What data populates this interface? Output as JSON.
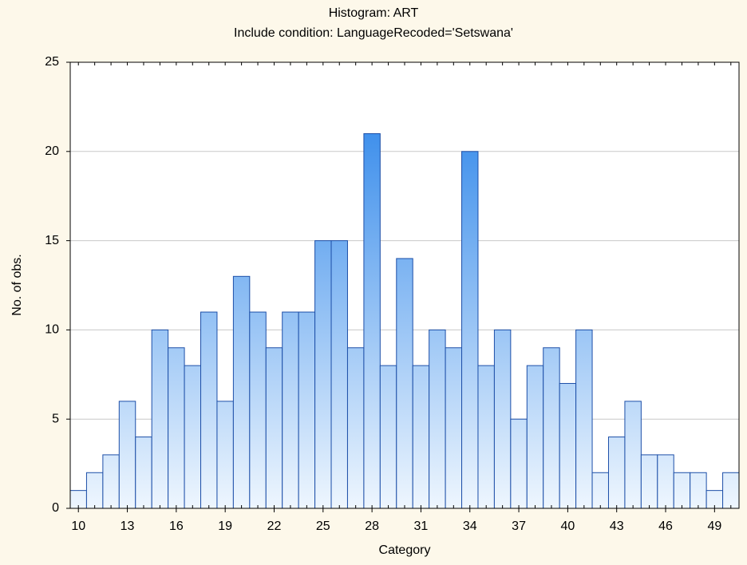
{
  "chart_data": {
    "type": "bar",
    "title": "Histogram: ART",
    "subtitle": "Include condition: LanguageRecoded='Setswana'",
    "xlabel": "Category",
    "ylabel": "No. of obs.",
    "x": [
      10,
      11,
      12,
      13,
      14,
      15,
      16,
      17,
      18,
      19,
      20,
      21,
      22,
      23,
      24,
      25,
      26,
      27,
      28,
      29,
      30,
      31,
      32,
      33,
      34,
      35,
      36,
      37,
      38,
      39,
      40,
      41,
      42,
      43,
      44,
      45,
      46,
      47,
      48,
      49,
      50
    ],
    "values": [
      1,
      2,
      3,
      6,
      4,
      10,
      9,
      8,
      11,
      6,
      13,
      11,
      9,
      11,
      11,
      15,
      15,
      9,
      21,
      8,
      14,
      8,
      10,
      9,
      20,
      8,
      10,
      5,
      8,
      9,
      7,
      10,
      2,
      4,
      6,
      3,
      3,
      2,
      2,
      1,
      2
    ],
    "xlim": [
      9.5,
      50.5
    ],
    "xticks": [
      10,
      13,
      16,
      19,
      22,
      25,
      28,
      31,
      34,
      37,
      40,
      43,
      46,
      49
    ],
    "ylim": [
      0,
      25
    ],
    "yticks": [
      0,
      5,
      10,
      15,
      20,
      25
    ],
    "grid": true,
    "color": "#1f7de8",
    "edge_color": "#1d4fa8"
  }
}
